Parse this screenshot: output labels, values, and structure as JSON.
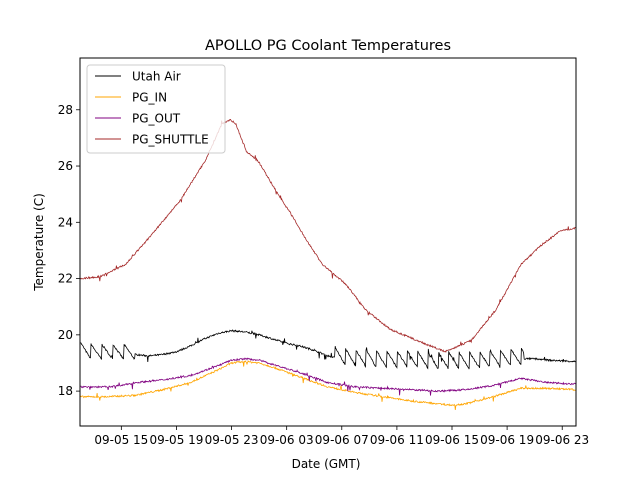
{
  "chart_data": {
    "type": "line",
    "title": "APOLLO PG Coolant Temperatures",
    "xlabel": "Date (GMT)",
    "ylabel": "Temperature (C)",
    "x_units": "hours since 09-05 12:00",
    "xlim": [
      0,
      36
    ],
    "ylim": [
      16.76,
      29.84
    ],
    "grid": false,
    "legend_position": "top-left",
    "x_ticks": [
      {
        "value": 3,
        "label": "09-05 15"
      },
      {
        "value": 7,
        "label": "09-05 19"
      },
      {
        "value": 11,
        "label": "09-05 23"
      },
      {
        "value": 15,
        "label": "09-06 03"
      },
      {
        "value": 19,
        "label": "09-06 07"
      },
      {
        "value": 23,
        "label": "09-06 11"
      },
      {
        "value": 27,
        "label": "09-06 15"
      },
      {
        "value": 31,
        "label": "09-06 19"
      },
      {
        "value": 35,
        "label": "09-06 23"
      }
    ],
    "y_ticks": [
      {
        "value": 18,
        "label": "18"
      },
      {
        "value": 20,
        "label": "20"
      },
      {
        "value": 22,
        "label": "22"
      },
      {
        "value": 24,
        "label": "24"
      },
      {
        "value": 26,
        "label": "26"
      },
      {
        "value": 28,
        "label": "28"
      }
    ],
    "series": [
      {
        "name": "Utah Air",
        "color": "#000000",
        "sawtooth": [
          {
            "start": 0,
            "end": 4.0,
            "period": 0.8,
            "amp": 0.55
          },
          {
            "start": 18.5,
            "end": 32.2,
            "period": 0.75,
            "amp": 0.6
          }
        ],
        "points": [
          [
            0,
            19.4
          ],
          [
            1,
            19.3
          ],
          [
            2,
            19.3
          ],
          [
            3,
            19.3
          ],
          [
            4,
            19.3
          ],
          [
            5,
            19.25
          ],
          [
            6,
            19.3
          ],
          [
            7,
            19.4
          ],
          [
            8,
            19.6
          ],
          [
            9,
            19.85
          ],
          [
            10,
            20.05
          ],
          [
            11,
            20.15
          ],
          [
            12,
            20.1
          ],
          [
            13,
            20.0
          ],
          [
            14,
            19.85
          ],
          [
            15,
            19.7
          ],
          [
            16,
            19.6
          ],
          [
            17,
            19.45
          ],
          [
            18,
            19.25
          ],
          [
            19,
            19.15
          ],
          [
            20,
            19.1
          ],
          [
            22,
            19.05
          ],
          [
            24,
            19.05
          ],
          [
            26,
            19.0
          ],
          [
            28,
            19.0
          ],
          [
            30,
            19.05
          ],
          [
            32,
            19.15
          ],
          [
            33,
            19.15
          ],
          [
            34,
            19.1
          ],
          [
            36,
            19.05
          ]
        ]
      },
      {
        "name": "PG_IN",
        "color": "#FFA500",
        "points": [
          [
            0,
            17.8
          ],
          [
            2,
            17.8
          ],
          [
            4,
            17.85
          ],
          [
            6,
            18.05
          ],
          [
            8,
            18.3
          ],
          [
            10,
            18.75
          ],
          [
            11,
            19.0
          ],
          [
            12,
            19.05
          ],
          [
            13,
            19.0
          ],
          [
            14,
            18.85
          ],
          [
            16,
            18.5
          ],
          [
            18,
            18.15
          ],
          [
            20,
            17.95
          ],
          [
            22,
            17.8
          ],
          [
            24,
            17.65
          ],
          [
            26,
            17.55
          ],
          [
            27,
            17.5
          ],
          [
            28,
            17.55
          ],
          [
            30,
            17.8
          ],
          [
            32,
            18.1
          ],
          [
            34,
            18.1
          ],
          [
            36,
            18.05
          ]
        ]
      },
      {
        "name": "PG_OUT",
        "color": "#800080",
        "points": [
          [
            0,
            18.15
          ],
          [
            2,
            18.15
          ],
          [
            3,
            18.2
          ],
          [
            4,
            18.3
          ],
          [
            6,
            18.4
          ],
          [
            8,
            18.55
          ],
          [
            10,
            18.9
          ],
          [
            11,
            19.1
          ],
          [
            12,
            19.15
          ],
          [
            13,
            19.1
          ],
          [
            14,
            18.95
          ],
          [
            16,
            18.65
          ],
          [
            18,
            18.3
          ],
          [
            20,
            18.15
          ],
          [
            22,
            18.1
          ],
          [
            24,
            18.05
          ],
          [
            26,
            18.0
          ],
          [
            28,
            18.05
          ],
          [
            30,
            18.2
          ],
          [
            32,
            18.45
          ],
          [
            34,
            18.3
          ],
          [
            36,
            18.25
          ]
        ]
      },
      {
        "name": "PG_SHUTTLE",
        "color": "#A52A2A",
        "points": [
          [
            0,
            22.0
          ],
          [
            1.45,
            22.07
          ],
          [
            3.3,
            22.5
          ],
          [
            5.1,
            23.5
          ],
          [
            7.3,
            24.8
          ],
          [
            9.1,
            26.2
          ],
          [
            10.3,
            27.5
          ],
          [
            10.9,
            27.65
          ],
          [
            11.3,
            27.5
          ],
          [
            12.1,
            26.5
          ],
          [
            12.9,
            26.2
          ],
          [
            14.0,
            25.3
          ],
          [
            15.3,
            24.3
          ],
          [
            16.4,
            23.4
          ],
          [
            17.6,
            22.5
          ],
          [
            19.3,
            21.8
          ],
          [
            20.7,
            20.9
          ],
          [
            22.5,
            20.2
          ],
          [
            24.7,
            19.75
          ],
          [
            26.5,
            19.4
          ],
          [
            28.4,
            19.8
          ],
          [
            30.2,
            20.9
          ],
          [
            32.0,
            22.5
          ],
          [
            33.5,
            23.2
          ],
          [
            34.9,
            23.7
          ],
          [
            36,
            23.8
          ]
        ]
      }
    ]
  }
}
